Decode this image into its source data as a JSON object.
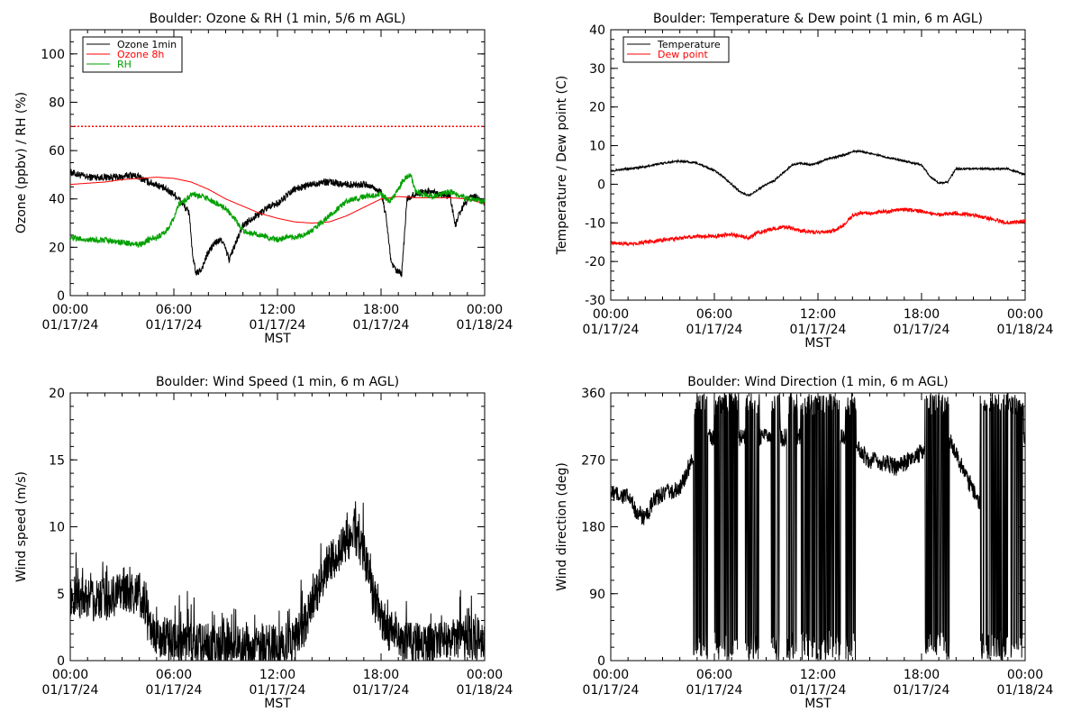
{
  "chart_data": [
    {
      "id": "ozone-rh",
      "type": "line",
      "title": "Boulder: Ozone & RH (1 min, 5/6 m AGL)",
      "xlabel": "MST",
      "ylabel": "Ozone (ppbv) / RH (%)",
      "xlim": [
        0,
        24
      ],
      "ylim": [
        0,
        110
      ],
      "yticks": [
        0,
        20,
        40,
        60,
        80,
        100
      ],
      "xticks": [
        "00:00",
        "06:00",
        "12:00",
        "18:00",
        "00:00"
      ],
      "xtick_dates": [
        "01/17/24",
        "01/17/24",
        "01/17/24",
        "01/17/24",
        "01/18/24"
      ],
      "legend_position": "top-left",
      "reference_lines": [
        {
          "y": 70,
          "color": "#ff0000",
          "style": "dotted"
        }
      ],
      "series": [
        {
          "name": "Ozone 1min",
          "color": "#000000",
          "noise": 1.5,
          "x": [
            0,
            0.5,
            1,
            2,
            3,
            3.5,
            4,
            4.5,
            5,
            5.5,
            6,
            6.3,
            6.6,
            6.9,
            7.1,
            7.3,
            7.6,
            8,
            8.4,
            8.8,
            9.2,
            9.6,
            10,
            10.5,
            11,
            11.5,
            12,
            12.5,
            13,
            13.5,
            14,
            14.5,
            15,
            16,
            17,
            17.5,
            18,
            18.3,
            18.6,
            18.9,
            19.2,
            19.5,
            20,
            20.5,
            21,
            21.5,
            22,
            22.3,
            22.6,
            23,
            23.5,
            24
          ],
          "y": [
            51,
            50,
            49,
            49,
            49,
            50,
            49,
            47,
            46,
            44,
            42,
            40,
            37,
            34,
            15,
            9,
            11,
            18,
            22,
            23,
            15,
            22,
            29,
            32,
            34,
            37,
            38,
            41,
            44,
            45,
            46,
            47,
            47,
            46,
            46,
            45,
            43,
            32,
            13,
            10,
            9,
            40,
            42,
            43,
            43,
            42,
            41,
            29,
            35,
            40,
            41,
            38
          ]
        },
        {
          "name": "Ozone 8h",
          "color": "#ff0000",
          "noise": 0,
          "x": [
            0,
            1,
            2,
            3,
            4,
            5,
            6,
            7,
            8,
            9,
            10,
            11,
            12,
            13,
            14,
            15,
            16,
            17,
            18,
            19,
            20,
            21,
            22,
            23,
            24
          ],
          "y": [
            46,
            46.5,
            47,
            48,
            48.5,
            49,
            48.5,
            47,
            44,
            40,
            37,
            34,
            32,
            30.5,
            30,
            30.5,
            33,
            36.5,
            40,
            41,
            40.5,
            40.5,
            40.5,
            40,
            38
          ]
        },
        {
          "name": "RH",
          "color": "#00a000",
          "noise": 1.2,
          "x": [
            0,
            1,
            2,
            3,
            4,
            4.5,
            5,
            5.5,
            6,
            6.3,
            6.6,
            6.9,
            7.2,
            7.6,
            8,
            8.5,
            9,
            9.5,
            10,
            10.5,
            11,
            11.5,
            12,
            12.5,
            13,
            13.5,
            14,
            15,
            16,
            17,
            18,
            18.5,
            19,
            19.3,
            19.7,
            20,
            20.5,
            21,
            22,
            23,
            24
          ],
          "y": [
            24,
            23,
            23,
            22,
            21,
            23,
            24,
            26,
            32,
            38,
            39,
            41,
            42,
            41,
            40,
            38,
            36,
            32,
            27,
            26,
            25,
            24,
            23,
            24,
            24,
            25,
            27,
            33,
            39,
            41,
            42,
            39,
            44,
            48,
            50,
            43,
            42,
            41,
            43,
            40,
            39
          ]
        }
      ]
    },
    {
      "id": "temp-dew",
      "type": "line",
      "title": "Boulder: Temperature & Dew point (1 min, 6 m AGL)",
      "xlabel": "MST",
      "ylabel": "Temperature / Dew point (C)",
      "xlim": [
        0,
        24
      ],
      "ylim": [
        -30,
        40
      ],
      "yticks": [
        -30,
        -20,
        -10,
        0,
        10,
        20,
        30,
        40
      ],
      "xticks": [
        "00:00",
        "06:00",
        "12:00",
        "18:00",
        "00:00"
      ],
      "xtick_dates": [
        "01/17/24",
        "01/17/24",
        "01/17/24",
        "01/17/24",
        "01/18/24"
      ],
      "legend_position": "top-left",
      "series": [
        {
          "name": "Temperature",
          "color": "#000000",
          "noise": 0.25,
          "x": [
            0,
            1,
            2,
            3,
            4,
            5,
            6,
            6.5,
            7,
            7.5,
            8,
            8.5,
            9,
            9.5,
            10,
            10.5,
            11,
            11.5,
            12,
            12.5,
            13,
            13.5,
            14,
            14.5,
            15,
            16,
            17,
            18,
            18.5,
            19,
            19.5,
            20,
            21,
            22,
            23,
            24
          ],
          "y": [
            3.5,
            4,
            4.5,
            5.5,
            6,
            5.5,
            3.5,
            2,
            0,
            -2,
            -3,
            -1.5,
            0,
            1,
            3,
            5,
            5.5,
            5,
            5.5,
            6.5,
            7,
            7.5,
            8.5,
            8.5,
            8,
            7,
            6,
            5,
            2,
            0.3,
            0.5,
            4,
            4,
            4,
            4,
            2.5
          ]
        },
        {
          "name": "Dew point",
          "color": "#ff0000",
          "noise": 0.5,
          "x": [
            0,
            1,
            2,
            3,
            4,
            5,
            6,
            7,
            8,
            8.5,
            9,
            10,
            11,
            12,
            13,
            13.5,
            14,
            14.5,
            15,
            16,
            17,
            18,
            19,
            20,
            21,
            22,
            23,
            24
          ],
          "y": [
            -15,
            -15.5,
            -15,
            -14.5,
            -14,
            -13.5,
            -13.5,
            -13,
            -14,
            -12.5,
            -12,
            -11,
            -12,
            -12.5,
            -12,
            -10.5,
            -8,
            -7.5,
            -7.5,
            -7,
            -6.5,
            -7,
            -8,
            -7.5,
            -8,
            -9,
            -10,
            -9.5
          ]
        }
      ]
    },
    {
      "id": "wind-speed",
      "type": "line",
      "title": "Boulder: Wind Speed (1 min, 6 m AGL)",
      "xlabel": "MST",
      "ylabel": "Wind speed (m/s)",
      "xlim": [
        0,
        24
      ],
      "ylim": [
        0,
        20
      ],
      "yticks": [
        0,
        5,
        10,
        15,
        20
      ],
      "xticks": [
        "00:00",
        "06:00",
        "12:00",
        "18:00",
        "00:00"
      ],
      "xtick_dates": [
        "01/17/24",
        "01/17/24",
        "01/17/24",
        "01/17/24",
        "01/18/24"
      ],
      "series": [
        {
          "name": "",
          "color": "#000000",
          "noise": 1.6,
          "x": [
            0,
            1,
            2,
            3,
            4,
            4.5,
            5,
            6,
            7,
            8,
            9,
            10,
            11,
            12,
            13,
            13.5,
            14,
            14.5,
            15,
            15.5,
            16,
            16.5,
            17,
            17.5,
            18,
            19,
            20,
            21,
            22,
            23,
            24
          ],
          "y": [
            5,
            4.5,
            4.5,
            5,
            5,
            3,
            1.5,
            1.5,
            1.2,
            1.2,
            1,
            1,
            1,
            1.2,
            1.5,
            2.5,
            4,
            6,
            7.5,
            8,
            9,
            9.5,
            8,
            5,
            3,
            1.5,
            1.2,
            1.2,
            1.5,
            1.5,
            1.5
          ]
        }
      ]
    },
    {
      "id": "wind-dir",
      "type": "line",
      "title": "Boulder: Wind Direction (1 min, 6 m AGL)",
      "xlabel": "MST",
      "ylabel": "Wind direction (deg)",
      "xlim": [
        0,
        24
      ],
      "ylim": [
        0,
        360
      ],
      "yticks": [
        0,
        90,
        180,
        270,
        360
      ],
      "xticks": [
        "00:00",
        "06:00",
        "12:00",
        "18:00",
        "00:00"
      ],
      "xtick_dates": [
        "01/17/24",
        "01/17/24",
        "01/17/24",
        "01/17/24",
        "01/18/24"
      ],
      "series": [
        {
          "name": "",
          "color": "#000000",
          "noise": 12,
          "x": [
            0,
            1,
            1.5,
            2,
            2.5,
            3,
            4,
            4.5,
            5,
            5.5,
            6,
            7,
            8,
            9,
            10,
            11,
            12,
            13,
            14,
            14.5,
            15,
            16,
            16.5,
            17,
            17.5,
            18,
            18.5,
            19,
            19.5,
            20,
            20.5,
            21,
            21.5,
            22,
            22.5,
            23,
            23.5,
            24
          ],
          "y": [
            225,
            220,
            200,
            190,
            215,
            225,
            230,
            260,
            290,
            300,
            300,
            300,
            300,
            300,
            300,
            300,
            300,
            300,
            300,
            280,
            270,
            265,
            260,
            265,
            275,
            280,
            300,
            310,
            300,
            280,
            250,
            230,
            200,
            230,
            270,
            280,
            290,
            300
          ],
          "wrap_windows": [
            [
              4.8,
              5.6
            ],
            [
              6.0,
              7.4
            ],
            [
              7.8,
              8.6
            ],
            [
              9.3,
              9.8
            ],
            [
              10.2,
              10.8
            ],
            [
              11.0,
              13.3
            ],
            [
              13.6,
              14.2
            ],
            [
              18.2,
              19.6
            ],
            [
              21.4,
              23.9
            ]
          ]
        }
      ]
    }
  ]
}
